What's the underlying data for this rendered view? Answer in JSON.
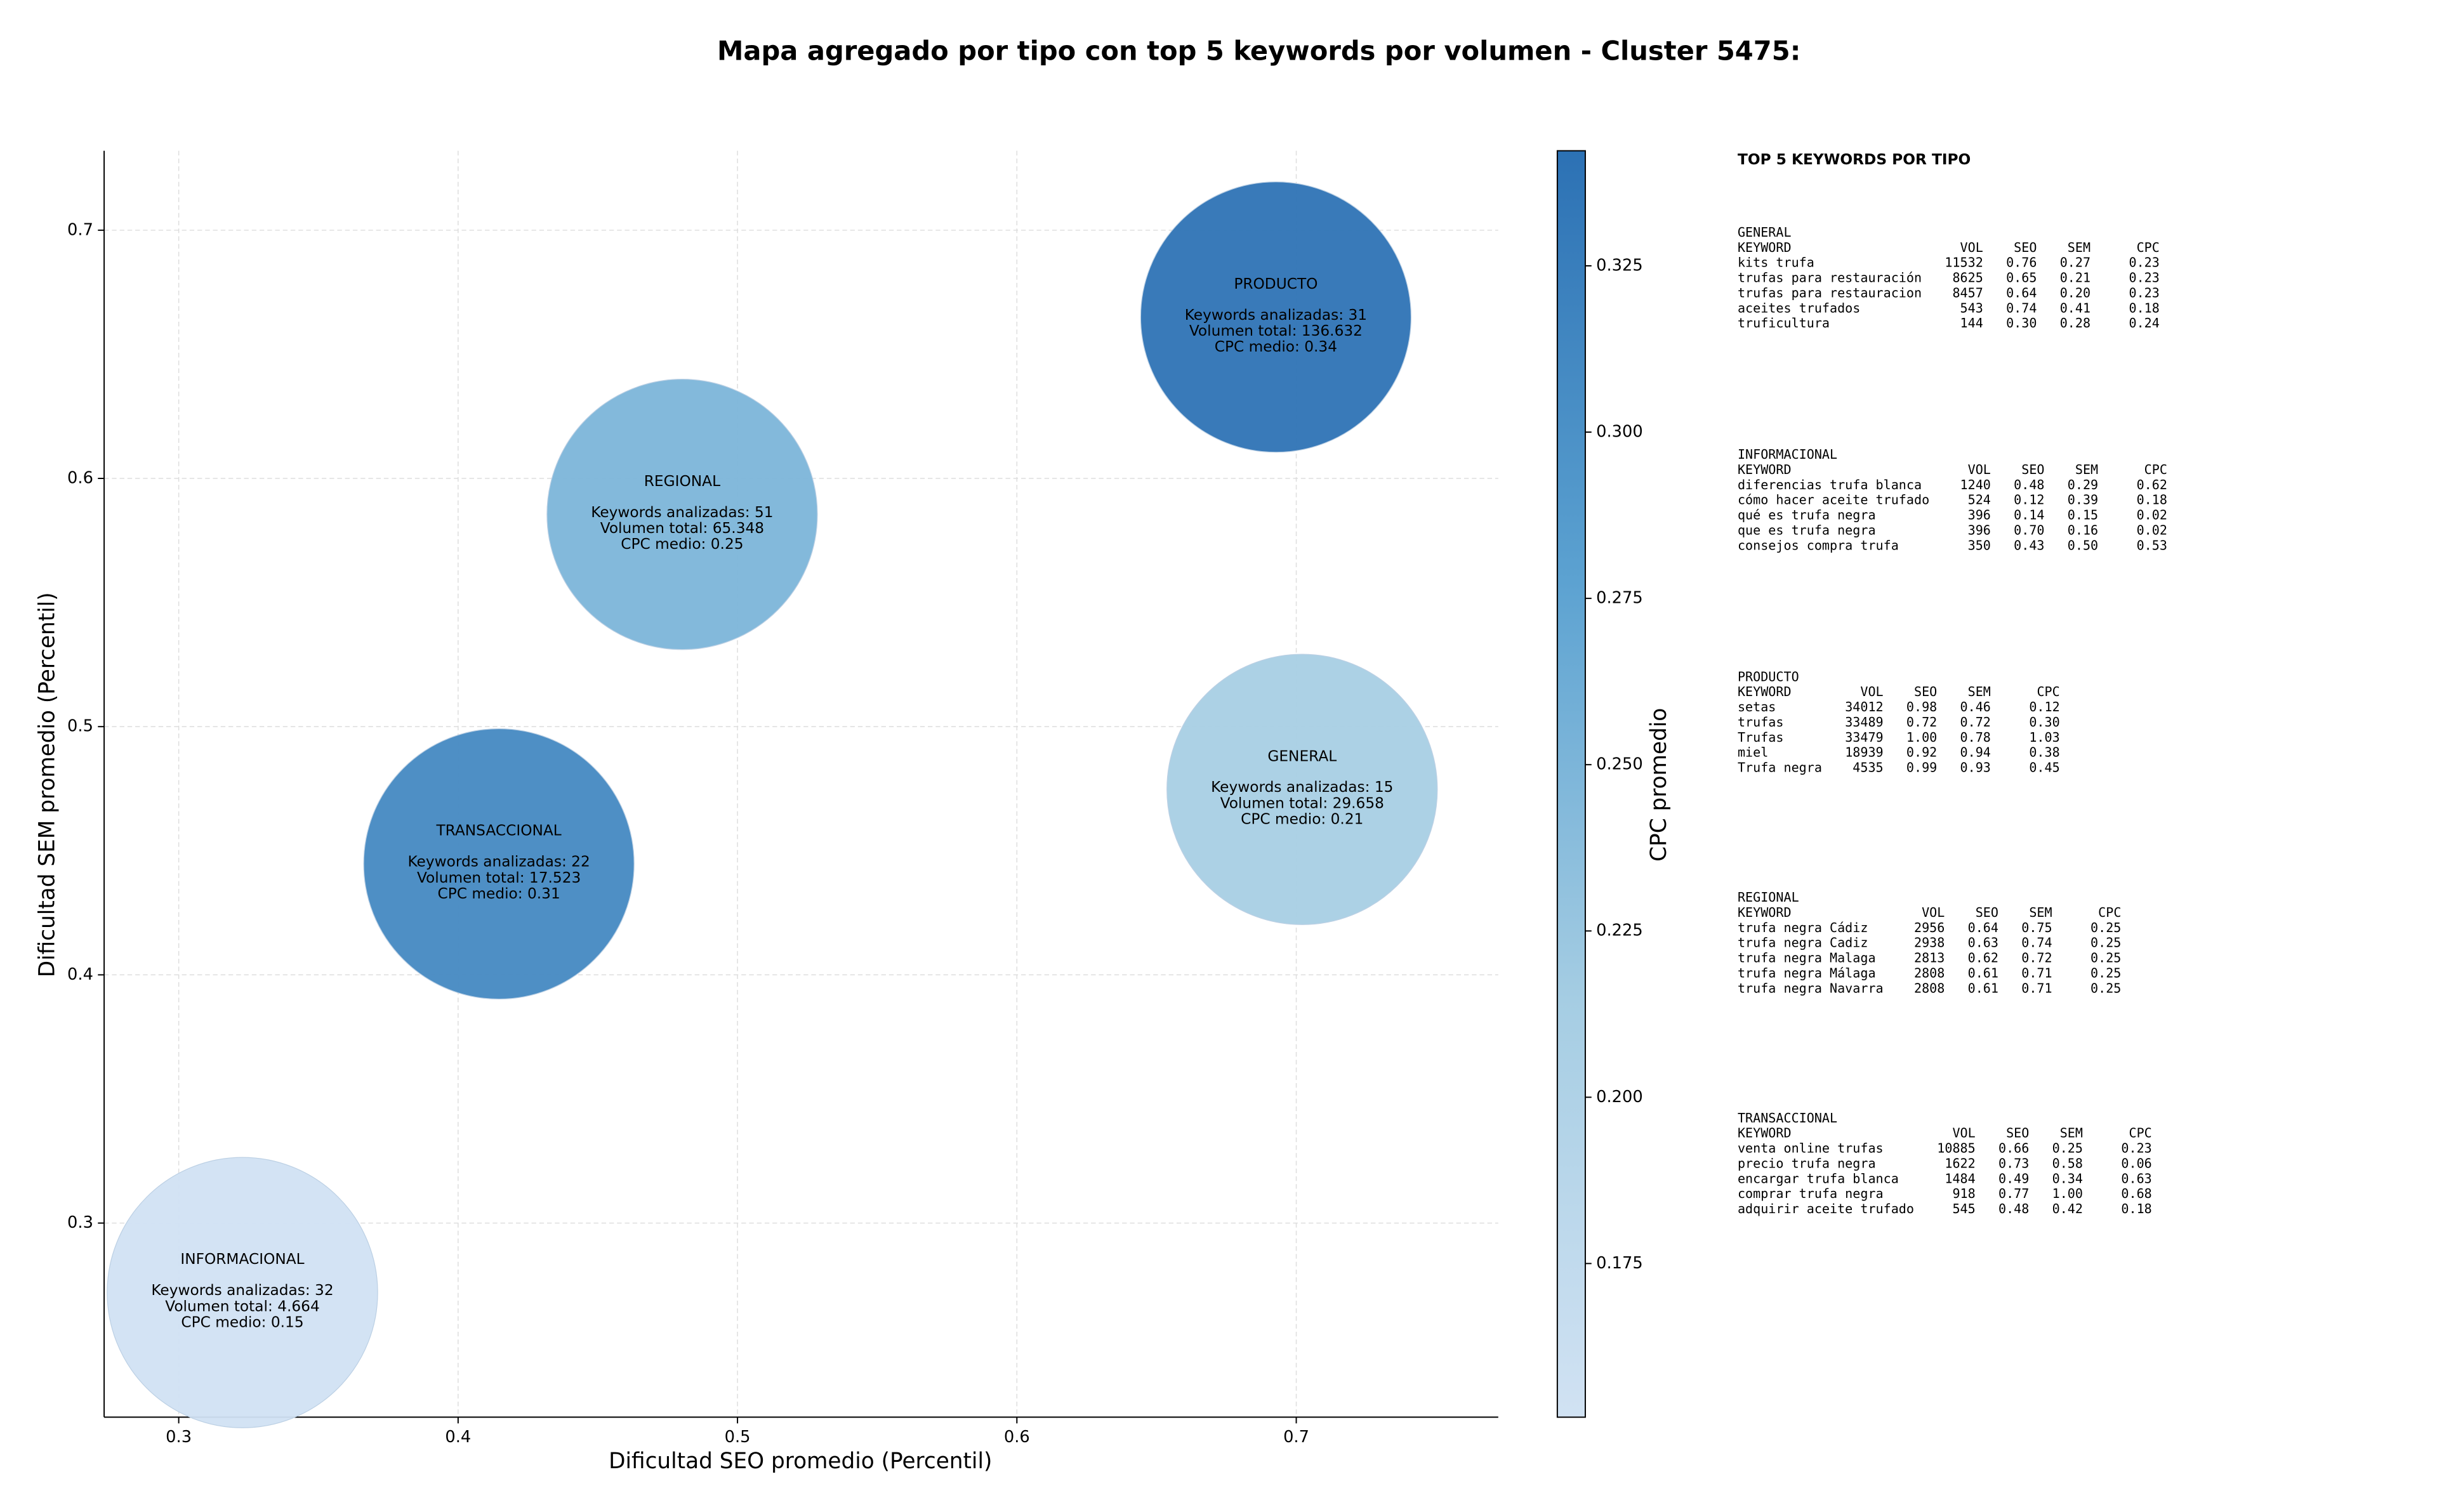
{
  "chart_data": {
    "type": "bubble",
    "title": "Mapa agregado por tipo con top 5 keywords por volumen - Cluster 5475:",
    "x_label": "Dificultad SEO promedio (Percentil)",
    "y_label": "Dificultad SEM promedio (Percentil)",
    "colorbar_label": "CPC promedio",
    "xlim": [
      0.2733,
      0.7723
    ],
    "ylim": [
      0.2218,
      0.732
    ],
    "xticks": [
      0.3,
      0.4,
      0.5,
      0.6,
      0.7
    ],
    "yticks": [
      0.3,
      0.4,
      0.5,
      0.6,
      0.7
    ],
    "clim": [
      0.1519,
      0.3423
    ],
    "cticks": [
      0.175,
      {
        "value": 0.2,
        "label": "0.200"
      },
      0.225,
      {
        "value": 0.25,
        "label": "0.250"
      },
      0.275,
      {
        "value": 0.3,
        "label": "0.300"
      },
      0.325
    ],
    "grid": true,
    "points": [
      {
        "name": "PRODUCTO",
        "x": 0.6927,
        "y": 0.665,
        "c": 0.34,
        "annotation_lines": [
          "Keywords analizadas: 31",
          "Volumen total: 136.632",
          "CPC medio: 0.34"
        ]
      },
      {
        "name": "REGIONAL",
        "x": 0.4802,
        "y": 0.5855,
        "c": 0.25,
        "annotation_lines": [
          "Keywords analizadas: 51",
          "Volumen total: 65.348",
          "CPC medio: 0.25"
        ]
      },
      {
        "name": "GENERAL",
        "x": 0.7021,
        "y": 0.4747,
        "c": 0.21,
        "annotation_lines": [
          "Keywords analizadas: 15",
          "Volumen total: 29.658",
          "CPC medio: 0.21"
        ]
      },
      {
        "name": "TRANSACCIONAL",
        "x": 0.4146,
        "y": 0.4447,
        "c": 0.31,
        "annotation_lines": [
          "Keywords analizadas: 22",
          "Volumen total: 17.523",
          "CPC medio: 0.31"
        ]
      },
      {
        "name": "INFORMACIONAL",
        "x": 0.3228,
        "y": 0.272,
        "c": 0.15,
        "annotation_lines": [
          "Keywords analizadas: 32",
          "Volumen total: 4.664",
          "CPC medio: 0.15"
        ]
      }
    ]
  },
  "panel": {
    "title": "TOP 5 KEYWORDS POR TIPO",
    "tables": [
      {
        "title": "GENERAL",
        "header": [
          "KEYWORD",
          "VOL",
          "SEO",
          "SEM",
          "CPC"
        ],
        "rows": [
          [
            "kits trufa",
            "11532",
            "0.76",
            "0.27",
            "0.23"
          ],
          [
            "trufas para restauración",
            "8625",
            "0.65",
            "0.21",
            "0.23"
          ],
          [
            "trufas para restauracion",
            "8457",
            "0.64",
            "0.20",
            "0.23"
          ],
          [
            "aceites trufados",
            "543",
            "0.74",
            "0.41",
            "0.18"
          ],
          [
            "truficultura",
            "144",
            "0.30",
            "0.28",
            "0.24"
          ]
        ]
      },
      {
        "title": "INFORMACIONAL",
        "header": [
          "KEYWORD",
          "VOL",
          "SEO",
          "SEM",
          "CPC"
        ],
        "rows": [
          [
            "diferencias trufa blanca",
            "1240",
            "0.48",
            "0.29",
            "0.62"
          ],
          [
            "cómo hacer aceite trufado",
            "524",
            "0.12",
            "0.39",
            "0.18"
          ],
          [
            "qué es trufa negra",
            "396",
            "0.14",
            "0.15",
            "0.02"
          ],
          [
            "que es trufa negra",
            "396",
            "0.70",
            "0.16",
            "0.02"
          ],
          [
            "consejos compra trufa",
            "350",
            "0.43",
            "0.50",
            "0.53"
          ]
        ]
      },
      {
        "title": "PRODUCTO",
        "header": [
          "KEYWORD",
          "VOL",
          "SEO",
          "SEM",
          "CPC"
        ],
        "rows": [
          [
            "setas",
            "34012",
            "0.98",
            "0.46",
            "0.12"
          ],
          [
            "trufas",
            "33489",
            "0.72",
            "0.72",
            "0.30"
          ],
          [
            "Trufas",
            "33479",
            "1.00",
            "0.78",
            "1.03"
          ],
          [
            "miel",
            "18939",
            "0.92",
            "0.94",
            "0.38"
          ],
          [
            "Trufa negra",
            "4535",
            "0.99",
            "0.93",
            "0.45"
          ]
        ]
      },
      {
        "title": "REGIONAL",
        "header": [
          "KEYWORD",
          "VOL",
          "SEO",
          "SEM",
          "CPC"
        ],
        "rows": [
          [
            "trufa negra Cádiz",
            "2956",
            "0.64",
            "0.75",
            "0.25"
          ],
          [
            "trufa negra Cadiz",
            "2938",
            "0.63",
            "0.74",
            "0.25"
          ],
          [
            "trufa negra Malaga",
            "2813",
            "0.62",
            "0.72",
            "0.25"
          ],
          [
            "trufa negra Málaga",
            "2808",
            "0.61",
            "0.71",
            "0.25"
          ],
          [
            "trufa negra Navarra",
            "2808",
            "0.61",
            "0.71",
            "0.25"
          ]
        ]
      },
      {
        "title": "TRANSACCIONAL",
        "header": [
          "KEYWORD",
          "VOL",
          "SEO",
          "SEM",
          "CPC"
        ],
        "rows": [
          [
            "venta online trufas",
            "10885",
            "0.66",
            "0.25",
            "0.23"
          ],
          [
            "precio trufa negra",
            "1622",
            "0.73",
            "0.58",
            "0.06"
          ],
          [
            "encargar trufa blanca",
            "1484",
            "0.49",
            "0.34",
            "0.63"
          ],
          [
            "comprar trufa negra",
            "918",
            "0.77",
            "1.00",
            "0.68"
          ],
          [
            "adquirir aceite trufado",
            "545",
            "0.48",
            "0.42",
            "0.18"
          ]
        ]
      }
    ]
  }
}
